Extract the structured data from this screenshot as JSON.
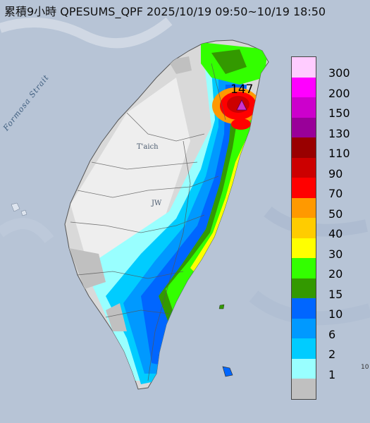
{
  "title": "累積9小時 QPESUMS_QPF 2025/10/19 09:50~10/19 18:50",
  "labels": {
    "strait": "Formosa Strait",
    "city_north": "T'aich",
    "city_central": "JW",
    "max_value": "147",
    "edge_value": "10"
  },
  "legend": {
    "levels": [
      {
        "label": "300",
        "color": "#ffccff"
      },
      {
        "label": "200",
        "color": "#ff00ff"
      },
      {
        "label": "150",
        "color": "#cc00cc"
      },
      {
        "label": "130",
        "color": "#990099"
      },
      {
        "label": "110",
        "color": "#990000"
      },
      {
        "label": "90",
        "color": "#cc0000"
      },
      {
        "label": "70",
        "color": "#ff0000"
      },
      {
        "label": "50",
        "color": "#ff9900"
      },
      {
        "label": "40",
        "color": "#ffcc00"
      },
      {
        "label": "30",
        "color": "#ffff00"
      },
      {
        "label": "20",
        "color": "#33ff00"
      },
      {
        "label": "15",
        "color": "#339900"
      },
      {
        "label": "10",
        "color": "#0066ff"
      },
      {
        "label": "6",
        "color": "#0099ff"
      },
      {
        "label": "2",
        "color": "#00ccff"
      },
      {
        "label": "1",
        "color": "#99ffff"
      },
      {
        "label": "",
        "color": "#c0c0c0"
      }
    ]
  },
  "colors": {
    "sea": "#b7c4d6",
    "land_base": "#d9d9d9",
    "marker": "#cc33cc"
  },
  "marker_icon": "triangle-icon"
}
